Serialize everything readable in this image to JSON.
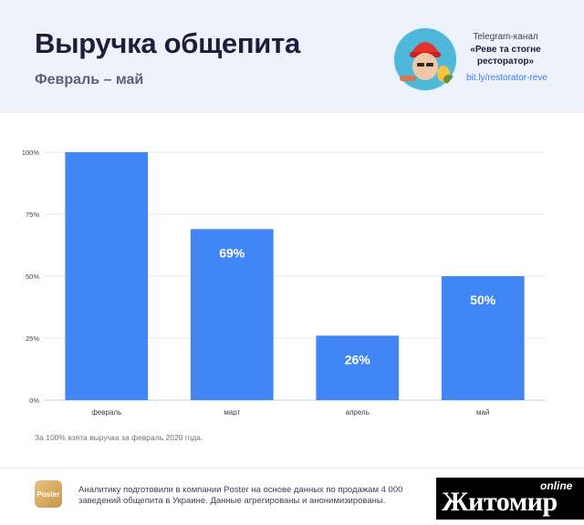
{
  "header": {
    "title": "Выручка общепита",
    "subtitle": "Февраль – май"
  },
  "channel": {
    "label": "Telegram-канал",
    "name": "«Реве та стогне ресторатор»",
    "link": "bit.ly/restorator-reve"
  },
  "chart_data": {
    "type": "bar",
    "categories": [
      "февраль",
      "март",
      "апрель",
      "май"
    ],
    "values": [
      100,
      69,
      26,
      50
    ],
    "data_labels": [
      "",
      "69%",
      "26%",
      "50%"
    ],
    "ytick_labels": [
      "0%",
      "25%",
      "50%",
      "75%",
      "100%"
    ],
    "ylim": [
      0,
      100
    ],
    "grid": true,
    "bar_color": "#4285f4",
    "title": "",
    "xlabel": "",
    "ylabel": ""
  },
  "footnote": "За 100% взята выручка за февраль 2020 года.",
  "footer": {
    "logo_text": "Poster",
    "disclaimer": "Аналитику подготовили в компании Poster на основе данных по продажам 4 000 заведений общепита в Украине. Данные агрегированы и анонимизированы.",
    "watermark_online": "online",
    "watermark_name": "Житомир"
  },
  "colors": {
    "header_bg": "#eef2fa",
    "bar": "#4285f4",
    "link": "#3a78ff"
  }
}
